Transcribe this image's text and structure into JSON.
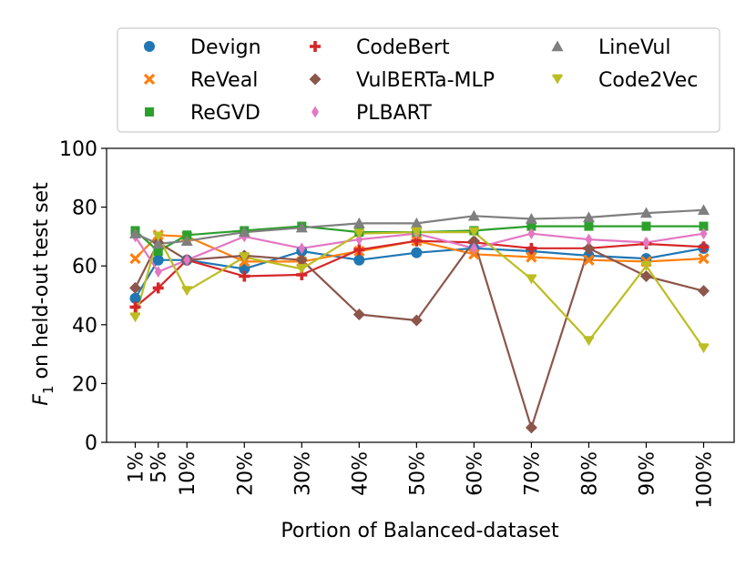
{
  "chart_data": {
    "type": "line",
    "xlabel": "Portion of Balanced-dataset",
    "ylabel_main": "F",
    "ylabel_sub": "1",
    "ylabel_rest": " on held-out test set",
    "ylim": [
      0,
      100
    ],
    "yticks": [
      0,
      20,
      40,
      60,
      80,
      100
    ],
    "x": [
      1,
      5,
      10,
      20,
      30,
      40,
      50,
      60,
      70,
      80,
      90,
      100
    ],
    "categories": [
      "1%",
      "5%",
      "10%",
      "20%",
      "30%",
      "40%",
      "50%",
      "60%",
      "70%",
      "80%",
      "90%",
      "100%"
    ],
    "legend_position": "top-center",
    "series": [
      {
        "name": "Devign",
        "color": "#1f77b4",
        "marker": "circle",
        "values": [
          49,
          62,
          62,
          59,
          65,
          62,
          64.5,
          66,
          65,
          63.5,
          62.5,
          66
        ]
      },
      {
        "name": "ReVeal",
        "color": "#ff7f0e",
        "marker": "x",
        "values": [
          62.5,
          70.5,
          70,
          61.5,
          61.5,
          65,
          68.5,
          64,
          63,
          62,
          61.5,
          62.5
        ]
      },
      {
        "name": "ReGVD",
        "color": "#2ca02c",
        "marker": "square",
        "values": [
          72,
          65,
          70.5,
          72,
          73.5,
          71.5,
          71.5,
          72,
          73.5,
          73.5,
          73.5,
          73.5
        ]
      },
      {
        "name": "CodeBert",
        "color": "#d62728",
        "marker": "plus",
        "values": [
          46,
          52.5,
          62,
          56.5,
          57,
          65.5,
          68.5,
          68,
          66,
          66,
          67.5,
          66.5
        ]
      },
      {
        "name": "VulBERTa-MLP",
        "color": "#8c564b",
        "marker": "diamond",
        "values": [
          52.5,
          68,
          62,
          63.5,
          62,
          43.5,
          41.5,
          68.5,
          5,
          66,
          56.5,
          51.5
        ]
      },
      {
        "name": "PLBART",
        "color": "#e377c2",
        "marker": "thin_diamond",
        "values": [
          70,
          58,
          62,
          70,
          66,
          69,
          71,
          66,
          71,
          69,
          68,
          71
        ]
      },
      {
        "name": "LineVul",
        "color": "#7f7f7f",
        "marker": "triangle",
        "values": [
          71,
          67.5,
          68.5,
          71.5,
          73,
          74.5,
          74.5,
          77,
          76,
          76.5,
          78,
          79
        ]
      },
      {
        "name": "Code2Vec",
        "color": "#bcbd22",
        "marker": "tri_down",
        "values": [
          42.5,
          70,
          51.5,
          63,
          59,
          71,
          71.5,
          71.5,
          55.5,
          34.5,
          60,
          32
        ]
      }
    ]
  }
}
